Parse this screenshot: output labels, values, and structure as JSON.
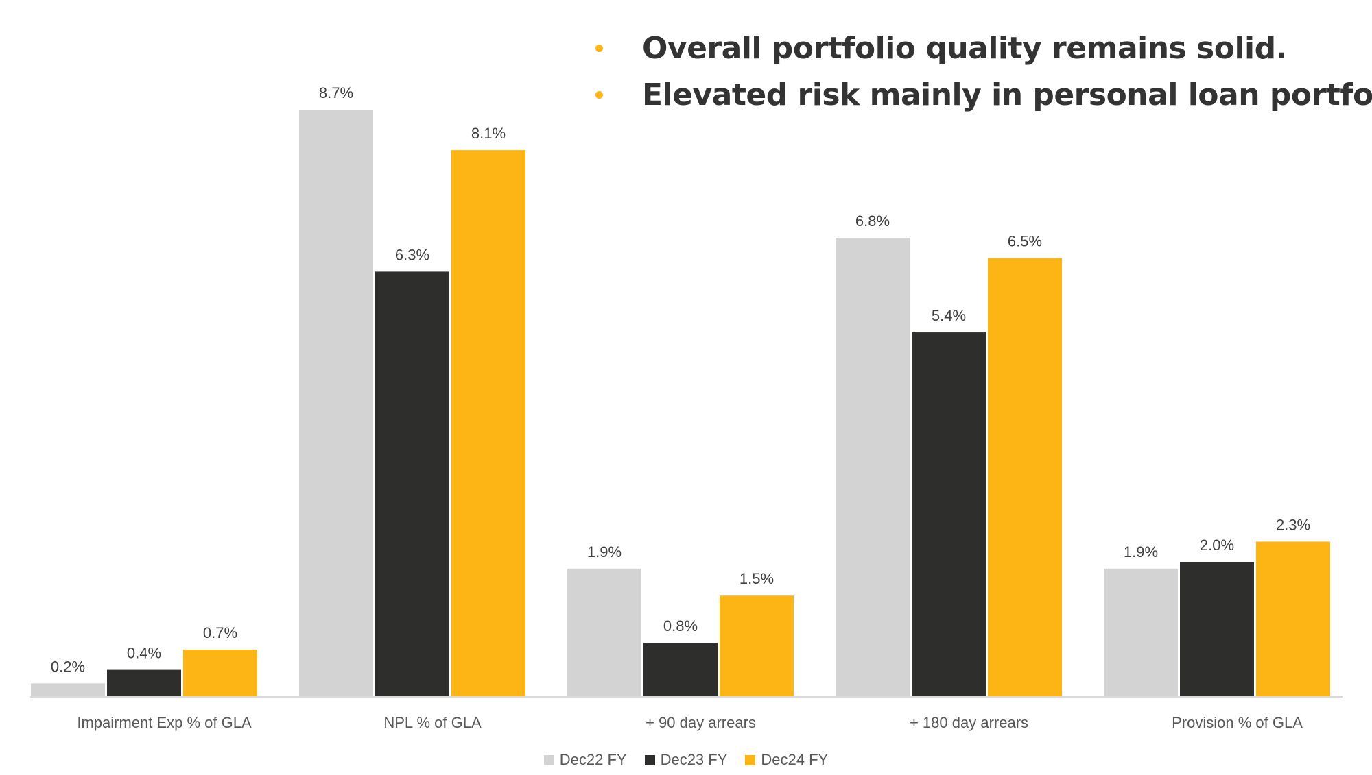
{
  "headline": {
    "bullets": [
      "Overall portfolio quality remains solid.",
      "Elevated risk mainly in personal loan portfolio."
    ],
    "bullet_color": "#FDB515"
  },
  "chart_data": {
    "type": "bar",
    "categories": [
      "Impairment Exp % of GLA",
      "NPL % of GLA",
      "+ 90 day arrears",
      "+ 180 day arrears",
      "Provision % of GLA"
    ],
    "series": [
      {
        "name": "Dec22 FY",
        "color": "#D3D3D3",
        "values": [
          0.2,
          8.7,
          1.9,
          6.8,
          1.9
        ],
        "labels": [
          "0.2%",
          "8.7%",
          "1.9%",
          "6.8%",
          "1.9%"
        ]
      },
      {
        "name": "Dec23 FY",
        "color": "#2E2E2C",
        "values": [
          0.4,
          6.3,
          0.8,
          5.4,
          2.0
        ],
        "labels": [
          "0.4%",
          "6.3%",
          "0.8%",
          "5.4%",
          "2.0%"
        ]
      },
      {
        "name": "Dec24 FY",
        "color": "#FDB515",
        "values": [
          0.7,
          8.1,
          1.5,
          6.5,
          2.3
        ],
        "labels": [
          "0.7%",
          "8.1%",
          "1.5%",
          "6.5%",
          "2.3%"
        ]
      }
    ],
    "ylim": [
      0,
      8.7
    ],
    "grid": false,
    "legend": "bottom-center",
    "xlabel": "",
    "ylabel": ""
  }
}
